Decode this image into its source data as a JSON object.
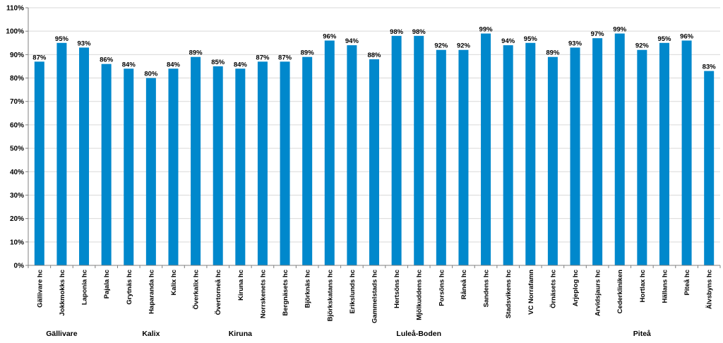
{
  "chart_data": {
    "type": "bar",
    "categories": [
      "Gällivare hc",
      "Jokkmokks hc",
      "Laponia hc",
      "Pajala hc",
      "Grytnäs hc",
      "Haparanda hc",
      "Kalix hc",
      "Överkalix hc",
      "Övertorneå hc",
      "Kiruna hc",
      "Norrskenets hc",
      "Bergnäsets hc",
      "Björknäs hc",
      "Björkskatans hc",
      "Erikslunds hc",
      "Gammelstads hc",
      "Hertsöns hc",
      "Mjölkuddens hc",
      "Porsöns hc",
      "Råneå hc",
      "Sandens hc",
      "Stadsvikens hc",
      "VC Norrafamn",
      "Örnäsets hc",
      "Arjeplog hc",
      "Arvidsjaurs hc",
      "Cederkliniken",
      "Hortlax hc",
      "Hällans hc",
      "Piteå hc",
      "Älvsbyns hc"
    ],
    "values": [
      87,
      95,
      93,
      86,
      84,
      80,
      84,
      89,
      85,
      84,
      87,
      87,
      89,
      96,
      94,
      88,
      98,
      98,
      92,
      92,
      99,
      94,
      95,
      89,
      93,
      97,
      99,
      92,
      95,
      96,
      83
    ],
    "data_labels": [
      "87%",
      "95%",
      "93%",
      "86%",
      "84%",
      "80%",
      "84%",
      "89%",
      "85%",
      "84%",
      "87%",
      "87%",
      "89%",
      "96%",
      "94%",
      "88%",
      "98%",
      "98%",
      "92%",
      "92%",
      "99%",
      "94%",
      "95%",
      "89%",
      "93%",
      "97%",
      "99%",
      "92%",
      "95%",
      "96%",
      "83%"
    ],
    "groups": [
      {
        "name": "Gällivare",
        "start": 0,
        "end": 2
      },
      {
        "name": "Kalix",
        "start": 3,
        "end": 7
      },
      {
        "name": "Kiruna",
        "start": 8,
        "end": 10
      },
      {
        "name": "Luleå-Boden",
        "start": 11,
        "end": 23
      },
      {
        "name": "Piteå",
        "start": 24,
        "end": 30
      }
    ],
    "yticks": [
      "0%",
      "10%",
      "20%",
      "30%",
      "40%",
      "50%",
      "60%",
      "70%",
      "80%",
      "90%",
      "100%",
      "110%"
    ],
    "ylim": [
      0,
      110
    ],
    "grid": true,
    "title": "",
    "xlabel": "",
    "ylabel": "",
    "bar_color": "#0088cc"
  }
}
